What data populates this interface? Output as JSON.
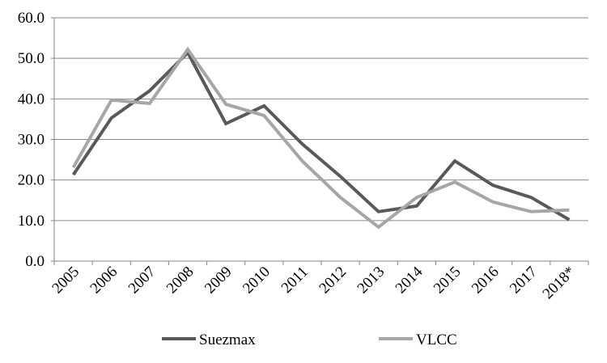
{
  "chart_data": {
    "type": "line",
    "title": "",
    "xlabel": "",
    "ylabel": "",
    "categories": [
      "2005",
      "2006",
      "2007",
      "2008",
      "2009",
      "2010",
      "2011",
      "2012",
      "2013",
      "2014",
      "2015",
      "2016",
      "2017",
      "2018*"
    ],
    "series": [
      {
        "name": "Suezmax",
        "color": "#595959",
        "values": [
          21.3,
          35.3,
          42.0,
          51.4,
          33.9,
          38.3,
          28.9,
          20.9,
          12.2,
          13.6,
          24.7,
          18.7,
          15.7,
          10.2
        ]
      },
      {
        "name": "VLCC",
        "color": "#a6a6a6",
        "values": [
          23.1,
          39.7,
          38.9,
          52.2,
          38.7,
          35.9,
          24.7,
          15.7,
          8.4,
          15.7,
          19.5,
          14.6,
          12.2,
          12.6
        ]
      }
    ],
    "ylim": [
      0,
      60
    ],
    "yticks": [
      "0.0",
      "10.0",
      "20.0",
      "30.0",
      "40.0",
      "50.0",
      "60.0"
    ],
    "grid": "horizontal",
    "legend_position": "bottom"
  }
}
